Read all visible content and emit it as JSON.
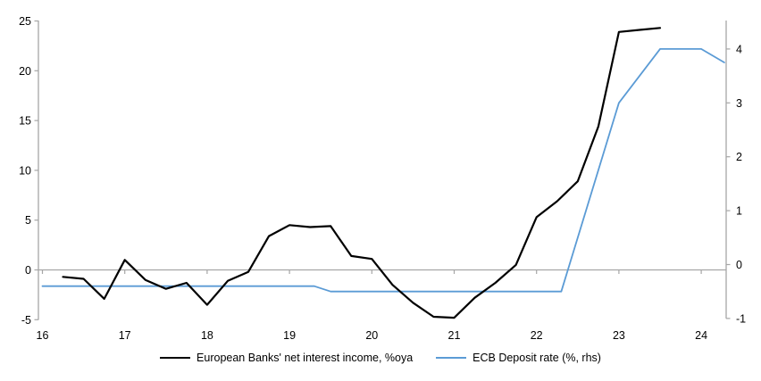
{
  "chart_data": {
    "type": "line",
    "title": "",
    "x_axis": {
      "tick_labels": [
        16,
        17,
        18,
        19,
        20,
        21,
        22,
        23,
        24
      ],
      "range": [
        2016,
        2024.35
      ],
      "grid": false
    },
    "left_y_axis": {
      "ticks": [
        25,
        20,
        15,
        10,
        5,
        0,
        -5
      ],
      "range": [
        -5,
        25
      ]
    },
    "right_y_axis": {
      "ticks": [
        4,
        3,
        2,
        1,
        0,
        -1
      ],
      "range": [
        -1,
        4.35
      ]
    },
    "zero_gridline": 0,
    "axis_color": "#a6a6a6",
    "background_color": "#ffffff",
    "legend_position": "bottom-center",
    "series": [
      {
        "name": "European Banks' net interest income, %oya",
        "axis": "left",
        "color": "#000000",
        "x": [
          2016.25,
          2016.5,
          2016.75,
          2017.0,
          2017.25,
          2017.5,
          2017.75,
          2018.0,
          2018.25,
          2018.5,
          2018.75,
          2019.0,
          2019.25,
          2019.5,
          2019.75,
          2020.0,
          2020.25,
          2020.5,
          2020.75,
          2021.0,
          2021.25,
          2021.5,
          2021.75,
          2022.0,
          2022.25,
          2022.5,
          2022.75,
          2023.0,
          2023.25,
          2023.5
        ],
        "values": [
          -0.7,
          -0.9,
          -2.9,
          1.0,
          -1.0,
          -1.9,
          -1.3,
          -3.5,
          -1.1,
          -0.2,
          3.4,
          4.5,
          4.3,
          4.4,
          1.4,
          1.1,
          -1.5,
          -3.3,
          -4.7,
          -4.8,
          -2.8,
          -1.3,
          0.5,
          5.3,
          6.9,
          8.9,
          14.4,
          23.9,
          24.1,
          24.3
        ]
      },
      {
        "name": "ECB Deposit rate (%, rhs)",
        "axis": "right",
        "color": "#5b9bd5",
        "x": [
          2016.0,
          2019.3,
          2019.5,
          2022.3,
          2023.0,
          2023.5,
          2024.0,
          2024.28
        ],
        "values": [
          -0.4,
          -0.4,
          -0.5,
          -0.5,
          3.0,
          4.0,
          4.0,
          3.75
        ]
      }
    ]
  }
}
